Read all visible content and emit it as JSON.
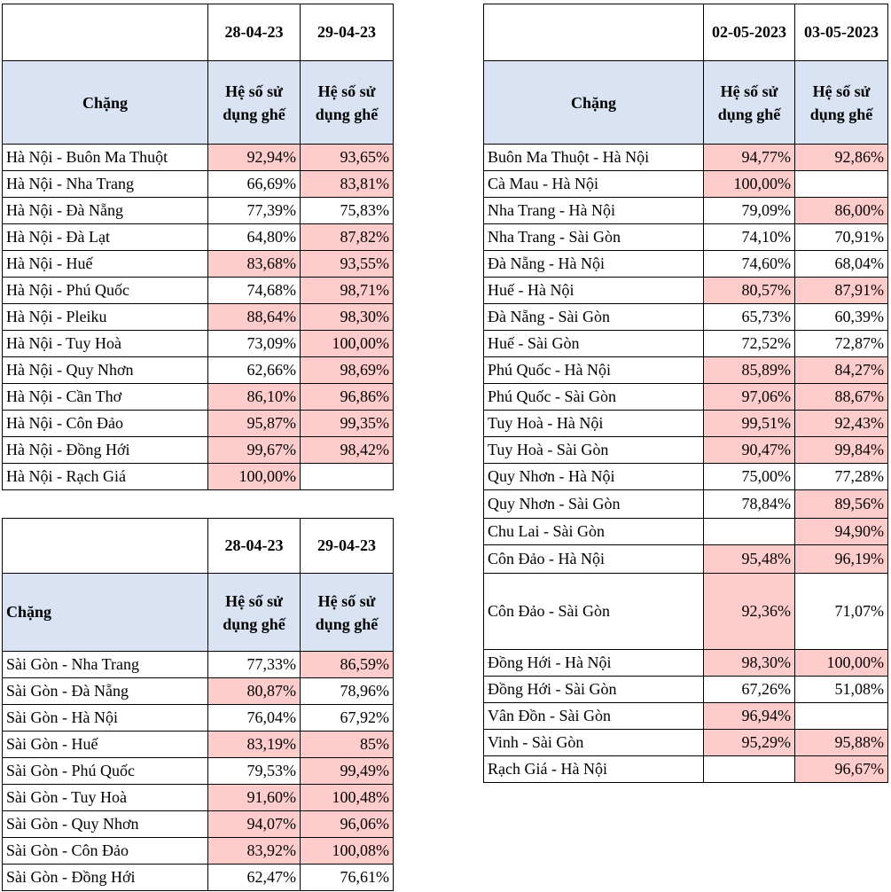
{
  "table1": {
    "dates": [
      "28-04-23",
      "29-04-23"
    ],
    "route_header": "Chặng",
    "metric_header": "Hệ số sử dụng ghế",
    "rows": [
      {
        "route": "Hà Nội - Buôn Ma Thuột",
        "v1": "92,94%",
        "v2": "93,65%"
      },
      {
        "route": "Hà Nội - Nha Trang",
        "v1": "66,69%",
        "v2": "83,81%"
      },
      {
        "route": "Hà Nội - Đà Nẵng",
        "v1": "77,39%",
        "v2": "75,83%"
      },
      {
        "route": "Hà Nội - Đà Lạt",
        "v1": "64,80%",
        "v2": "87,82%"
      },
      {
        "route": "Hà Nội - Huế",
        "v1": "83,68%",
        "v2": "93,55%"
      },
      {
        "route": "Hà Nội - Phú Quốc",
        "v1": "74,68%",
        "v2": "98,71%"
      },
      {
        "route": "Hà Nội - Pleiku",
        "v1": "88,64%",
        "v2": "98,30%"
      },
      {
        "route": "Hà Nội - Tuy Hoà",
        "v1": "73,09%",
        "v2": "100,00%"
      },
      {
        "route": "Hà Nội - Quy Nhơn",
        "v1": "62,66%",
        "v2": "98,69%"
      },
      {
        "route": "Hà Nội - Cần Thơ",
        "v1": "86,10%",
        "v2": "96,86%"
      },
      {
        "route": "Hà Nội - Côn Đảo",
        "v1": "95,87%",
        "v2": "99,35%"
      },
      {
        "route": "Hà Nội - Đồng Hới",
        "v1": "99,67%",
        "v2": "98,42%"
      },
      {
        "route": "Hà Nội - Rạch Giá",
        "v1": "100,00%",
        "v2": ""
      }
    ]
  },
  "table2": {
    "dates": [
      "28-04-23",
      "29-04-23"
    ],
    "route_header": "Chặng",
    "metric_header": "Hệ số sử dụng ghế",
    "rows": [
      {
        "route": "Sài Gòn - Nha Trang",
        "v1": "77,33%",
        "v2": "86,59%"
      },
      {
        "route": "Sài Gòn - Đà Nẵng",
        "v1": "80,87%",
        "v2": "78,96%"
      },
      {
        "route": "Sài Gòn - Hà Nội",
        "v1": "76,04%",
        "v2": "67,92%"
      },
      {
        "route": "Sài Gòn - Huế",
        "v1": "83,19%",
        "v2": "85%"
      },
      {
        "route": "Sài Gòn - Phú Quốc",
        "v1": "79,53%",
        "v2": "99,49%"
      },
      {
        "route": "Sài Gòn - Tuy Hoà",
        "v1": "91,60%",
        "v2": "100,48%"
      },
      {
        "route": "Sài Gòn - Quy Nhơn",
        "v1": "94,07%",
        "v2": "96,06%"
      },
      {
        "route": "Sài Gòn - Côn Đảo",
        "v1": "83,92%",
        "v2": "100,08%"
      },
      {
        "route": "Sài Gòn - Đồng Hới",
        "v1": "62,47%",
        "v2": "76,61%"
      }
    ]
  },
  "table3": {
    "dates": [
      "02-05-2023",
      "03-05-2023"
    ],
    "route_header": "Chặng",
    "metric_header": "Hệ số sử dụng ghế",
    "rows": [
      {
        "route": "Buôn Ma Thuột - Hà Nội",
        "v1": "94,77%",
        "v2": "92,86%"
      },
      {
        "route": "Cà Mau - Hà Nội",
        "v1": "100,00%",
        "v2": ""
      },
      {
        "route": "Nha Trang - Hà Nội",
        "v1": "79,09%",
        "v2": "86,00%"
      },
      {
        "route": "Nha Trang - Sài Gòn",
        "v1": "74,10%",
        "v2": "70,91%"
      },
      {
        "route": "Đà Nẵng - Hà Nội",
        "v1": "74,60%",
        "v2": "68,04%"
      },
      {
        "route": "Huế - Hà Nội",
        "v1": "80,57%",
        "v2": "87,91%"
      },
      {
        "route": "Đà Nẵng - Sài Gòn",
        "v1": "65,73%",
        "v2": "60,39%"
      },
      {
        "route": "Huế - Sài Gòn",
        "v1": "72,52%",
        "v2": "72,87%"
      },
      {
        "route": "Phú Quốc - Hà Nội",
        "v1": "85,89%",
        "v2": "84,27%"
      },
      {
        "route": "Phú Quốc - Sài Gòn",
        "v1": "97,06%",
        "v2": "88,67%"
      },
      {
        "route": "Tuy Hoà - Hà Nội",
        "v1": "99,51%",
        "v2": "92,43%"
      },
      {
        "route": "Tuy Hoà - Sài Gòn",
        "v1": "90,47%",
        "v2": "99,84%"
      },
      {
        "route": "Quy Nhơn - Hà Nội",
        "v1": "75,00%",
        "v2": "77,28%"
      },
      {
        "route": "Quy Nhơn - Sài Gòn",
        "v1": "78,84%",
        "v2": "89,56%"
      },
      {
        "route": "Chu Lai - Sài Gòn",
        "v1": "",
        "v2": "94,90%"
      },
      {
        "route": "Côn Đảo - Hà Nội",
        "v1": "95,48%",
        "v2": "96,19%"
      },
      {
        "route": "Côn Đảo - Sài Gòn",
        "v1": "92,36%",
        "v2": "71,07%"
      },
      {
        "route": "Đồng Hới - Hà Nội",
        "v1": "98,30%",
        "v2": "100,00%"
      },
      {
        "route": "Đồng Hới - Sài Gòn",
        "v1": "67,26%",
        "v2": "51,08%"
      },
      {
        "route": "Vân Đồn  - Sài Gòn",
        "v1": "96,94%",
        "v2": ""
      },
      {
        "route": "Vinh - Sài Gòn",
        "v1": "95,29%",
        "v2": "95,88%"
      },
      {
        "route": "Rạch Giá - Hà Nội",
        "v1": "",
        "v2": "96,67%"
      }
    ]
  },
  "colors": {
    "header_fill": "#dae3f3",
    "highlight_fill": "#ffcccc"
  }
}
